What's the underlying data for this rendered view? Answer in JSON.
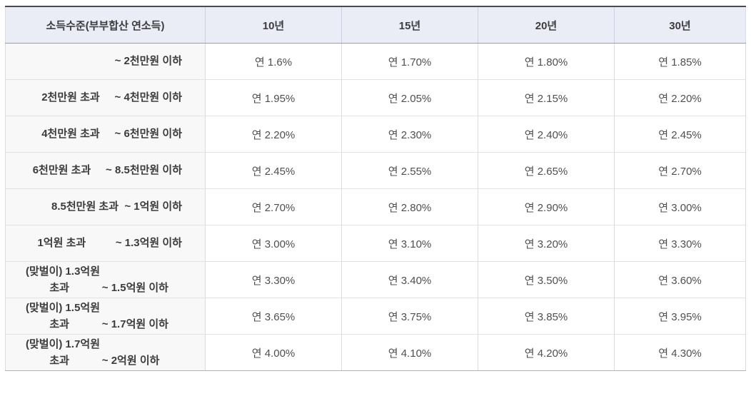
{
  "table": {
    "header": {
      "income_label": "소득수준(부부합산 연소득)",
      "terms": [
        "10년",
        "15년",
        "20년",
        "30년"
      ]
    },
    "rows": [
      {
        "income": "~ 2천만원 이하",
        "rates": [
          "연 1.6%",
          "연 1.70%",
          "연 1.80%",
          "연 1.85%"
        ]
      },
      {
        "income": "2천만원 초과     ~ 4천만원 이하",
        "rates": [
          "연 1.95%",
          "연 2.05%",
          "연 2.15%",
          "연 2.20%"
        ]
      },
      {
        "income": "4천만원 초과     ~ 6천만원 이하",
        "rates": [
          "연 2.20%",
          "연 2.30%",
          "연 2.40%",
          "연 2.45%"
        ]
      },
      {
        "income": "6천만원 초과     ~ 8.5천만원 이하",
        "rates": [
          "연 2.45%",
          "연 2.55%",
          "연 2.65%",
          "연 2.70%"
        ]
      },
      {
        "income": "8.5천만원 초과  ~ 1억원 이하",
        "rates": [
          "연 2.70%",
          "연 2.80%",
          "연 2.90%",
          "연 3.00%"
        ]
      },
      {
        "income": "1억원 초과          ~ 1.3억원 이하",
        "rates": [
          "연 3.00%",
          "연 3.10%",
          "연 3.20%",
          "연 3.30%"
        ]
      },
      {
        "income": "(맞벌이) 1.3억원\n        초과           ~ 1.5억원 이하",
        "rates": [
          "연 3.30%",
          "연 3.40%",
          "연 3.50%",
          "연 3.60%"
        ]
      },
      {
        "income": "(맞벌이) 1.5억원\n        초과           ~ 1.7억원 이하",
        "rates": [
          "연 3.65%",
          "연 3.75%",
          "연 3.85%",
          "연 3.95%"
        ]
      },
      {
        "income": "(맞벌이) 1.7억원\n        초과           ~ 2억원 이하",
        "rates": [
          "연 4.00%",
          "연 4.10%",
          "연 4.20%",
          "연 4.30%"
        ]
      }
    ]
  },
  "colors": {
    "header_background": "#eaedf6",
    "label_column_background": "#f8f8f8",
    "table_top_border": "#4b4b4f",
    "header_bottom_border": "#9c9ca2",
    "row_border": "#e3e3e3",
    "column_border": "#dddddd",
    "table_bottom_border": "#b2b2b2",
    "header_text": "#3c3c3c",
    "value_text": "#4f4f4f"
  }
}
